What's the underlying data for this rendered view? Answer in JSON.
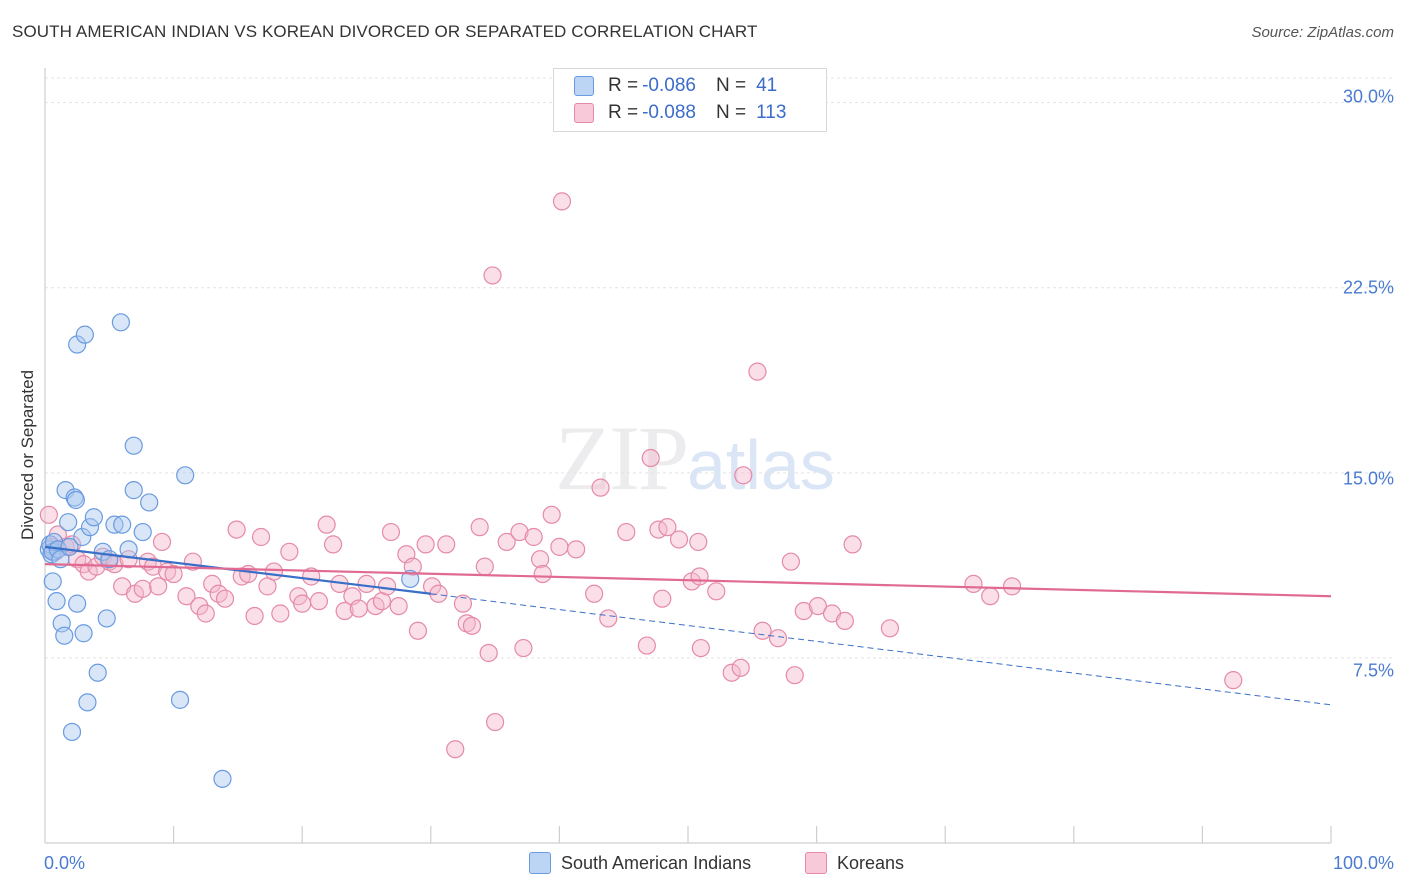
{
  "header": {
    "title": "SOUTH AMERICAN INDIAN VS KOREAN DIVORCED OR SEPARATED CORRELATION CHART",
    "source": "Source: ZipAtlas.com"
  },
  "watermark": {
    "zip": "ZIP",
    "atlas": "atlas"
  },
  "legend_top": {
    "rows": [
      {
        "r_label": "R =",
        "r_value": "-0.086",
        "n_label": "N =",
        "n_value": "41"
      },
      {
        "r_label": "R =",
        "r_value": "-0.088",
        "n_label": "N =",
        "n_value": "113"
      }
    ]
  },
  "legend_bottom": {
    "items": [
      {
        "label": "South American Indians"
      },
      {
        "label": "Koreans"
      }
    ]
  },
  "colors": {
    "blue_fill": "#a9c8f0",
    "blue_stroke": "#6a9be0",
    "blue_line": "#3a6fc8",
    "pink_fill": "#f4b8cb",
    "pink_stroke": "#e58aa7",
    "pink_line": "#e06a92",
    "grid": "#e4e4e4",
    "tick_label": "#4a7bd0"
  },
  "chart_data": {
    "type": "scatter",
    "title": "SOUTH AMERICAN INDIAN VS KOREAN DIVORCED OR SEPARATED CORRELATION CHART",
    "xlabel": "",
    "ylabel": "Divorced or Separated",
    "xlim": [
      0,
      100
    ],
    "ylim": [
      0,
      31
    ],
    "x_tick_labels": [
      "0.0%",
      "100.0%"
    ],
    "y_ticks": [
      7.5,
      15.0,
      22.5,
      30.0
    ],
    "y_tick_labels": [
      "7.5%",
      "15.0%",
      "22.5%",
      "30.0%"
    ],
    "grid": true,
    "legend_position": "top-center",
    "series": [
      {
        "name": "South American Indians",
        "points": [
          [
            0.3,
            11.9
          ],
          [
            0.4,
            12.1
          ],
          [
            0.5,
            11.7
          ],
          [
            0.6,
            11.8
          ],
          [
            0.7,
            12.2
          ],
          [
            0.6,
            10.6
          ],
          [
            0.9,
            9.8
          ],
          [
            1.0,
            11.9
          ],
          [
            1.2,
            11.5
          ],
          [
            1.3,
            8.9
          ],
          [
            1.5,
            8.4
          ],
          [
            1.6,
            14.3
          ],
          [
            1.8,
            13.0
          ],
          [
            1.9,
            12.0
          ],
          [
            2.1,
            4.5
          ],
          [
            2.3,
            14.0
          ],
          [
            2.4,
            13.9
          ],
          [
            2.5,
            9.7
          ],
          [
            2.5,
            20.2
          ],
          [
            2.9,
            12.4
          ],
          [
            3.0,
            8.5
          ],
          [
            3.1,
            20.6
          ],
          [
            3.3,
            5.7
          ],
          [
            3.5,
            12.8
          ],
          [
            3.8,
            13.2
          ],
          [
            4.1,
            6.9
          ],
          [
            4.5,
            11.8
          ],
          [
            4.8,
            9.1
          ],
          [
            5.0,
            11.5
          ],
          [
            5.4,
            12.9
          ],
          [
            5.9,
            21.1
          ],
          [
            6.0,
            12.9
          ],
          [
            6.5,
            11.9
          ],
          [
            6.9,
            16.1
          ],
          [
            6.9,
            14.3
          ],
          [
            7.6,
            12.6
          ],
          [
            8.1,
            13.8
          ],
          [
            10.5,
            5.8
          ],
          [
            10.9,
            14.9
          ],
          [
            13.8,
            2.6
          ],
          [
            28.4,
            10.7
          ]
        ]
      },
      {
        "name": "Koreans",
        "points": [
          [
            0.3,
            13.3
          ],
          [
            0.5,
            12.0
          ],
          [
            0.8,
            11.8
          ],
          [
            1.0,
            12.5
          ],
          [
            1.6,
            12.0
          ],
          [
            2.1,
            12.1
          ],
          [
            2.5,
            11.5
          ],
          [
            3.0,
            11.3
          ],
          [
            3.4,
            11.0
          ],
          [
            4.0,
            11.2
          ],
          [
            4.5,
            11.6
          ],
          [
            5.0,
            11.4
          ],
          [
            5.4,
            11.3
          ],
          [
            6.0,
            10.4
          ],
          [
            6.5,
            11.5
          ],
          [
            7.0,
            10.1
          ],
          [
            7.6,
            10.3
          ],
          [
            8.0,
            11.4
          ],
          [
            8.4,
            11.2
          ],
          [
            8.8,
            10.4
          ],
          [
            9.1,
            12.2
          ],
          [
            9.5,
            11.0
          ],
          [
            10.0,
            10.9
          ],
          [
            11.0,
            10.0
          ],
          [
            11.5,
            11.4
          ],
          [
            12.0,
            9.6
          ],
          [
            12.5,
            9.3
          ],
          [
            13.0,
            10.5
          ],
          [
            13.5,
            10.1
          ],
          [
            14.0,
            9.9
          ],
          [
            14.9,
            12.7
          ],
          [
            15.3,
            10.8
          ],
          [
            15.8,
            10.9
          ],
          [
            16.3,
            9.2
          ],
          [
            16.8,
            12.4
          ],
          [
            17.3,
            10.4
          ],
          [
            17.8,
            11.0
          ],
          [
            18.3,
            9.3
          ],
          [
            19.0,
            11.8
          ],
          [
            19.7,
            10.0
          ],
          [
            20.0,
            9.7
          ],
          [
            20.7,
            10.8
          ],
          [
            21.3,
            9.8
          ],
          [
            21.9,
            12.9
          ],
          [
            22.4,
            12.1
          ],
          [
            22.9,
            10.5
          ],
          [
            23.3,
            9.4
          ],
          [
            23.9,
            10.0
          ],
          [
            24.4,
            9.5
          ],
          [
            25.0,
            10.5
          ],
          [
            25.7,
            9.6
          ],
          [
            26.2,
            9.8
          ],
          [
            26.6,
            10.4
          ],
          [
            26.9,
            12.6
          ],
          [
            27.5,
            9.6
          ],
          [
            28.1,
            11.7
          ],
          [
            28.6,
            11.2
          ],
          [
            29.0,
            8.6
          ],
          [
            29.6,
            12.1
          ],
          [
            30.1,
            10.4
          ],
          [
            30.6,
            10.1
          ],
          [
            31.2,
            12.1
          ],
          [
            31.9,
            3.8
          ],
          [
            32.5,
            9.7
          ],
          [
            32.8,
            8.9
          ],
          [
            33.2,
            8.8
          ],
          [
            33.8,
            12.8
          ],
          [
            34.2,
            11.2
          ],
          [
            34.5,
            7.7
          ],
          [
            34.8,
            23.0
          ],
          [
            35.0,
            4.9
          ],
          [
            35.9,
            12.2
          ],
          [
            36.9,
            12.6
          ],
          [
            37.2,
            7.9
          ],
          [
            38.0,
            12.4
          ],
          [
            38.5,
            11.5
          ],
          [
            38.7,
            10.9
          ],
          [
            39.4,
            13.3
          ],
          [
            40.0,
            12.0
          ],
          [
            40.2,
            26.0
          ],
          [
            41.3,
            11.9
          ],
          [
            42.7,
            10.1
          ],
          [
            43.2,
            14.4
          ],
          [
            43.8,
            9.1
          ],
          [
            45.2,
            12.6
          ],
          [
            46.8,
            8.0
          ],
          [
            47.1,
            15.6
          ],
          [
            47.7,
            12.7
          ],
          [
            48.0,
            9.9
          ],
          [
            48.4,
            12.8
          ],
          [
            49.3,
            12.3
          ],
          [
            50.3,
            10.6
          ],
          [
            50.8,
            12.2
          ],
          [
            50.9,
            10.8
          ],
          [
            51.0,
            7.9
          ],
          [
            52.2,
            10.2
          ],
          [
            53.4,
            6.9
          ],
          [
            54.1,
            7.1
          ],
          [
            54.3,
            14.9
          ],
          [
            55.4,
            19.1
          ],
          [
            55.8,
            8.6
          ],
          [
            57.0,
            8.3
          ],
          [
            58.0,
            11.4
          ],
          [
            58.3,
            6.8
          ],
          [
            59.0,
            9.4
          ],
          [
            60.1,
            9.6
          ],
          [
            61.2,
            9.3
          ],
          [
            62.2,
            9.0
          ],
          [
            62.8,
            12.1
          ],
          [
            65.7,
            8.7
          ],
          [
            72.2,
            10.5
          ],
          [
            73.5,
            10.0
          ],
          [
            75.2,
            10.4
          ],
          [
            92.4,
            6.6
          ]
        ]
      }
    ],
    "trendlines": [
      {
        "series": "South American Indians",
        "x": [
          0,
          30
        ],
        "y": [
          12.0,
          10.1
        ],
        "style": "solid"
      },
      {
        "series": "South American Indians",
        "x": [
          30,
          100
        ],
        "y": [
          10.1,
          5.6
        ],
        "style": "dashed"
      },
      {
        "series": "Koreans",
        "x": [
          0,
          100
        ],
        "y": [
          11.3,
          10.0
        ],
        "style": "solid"
      }
    ]
  }
}
